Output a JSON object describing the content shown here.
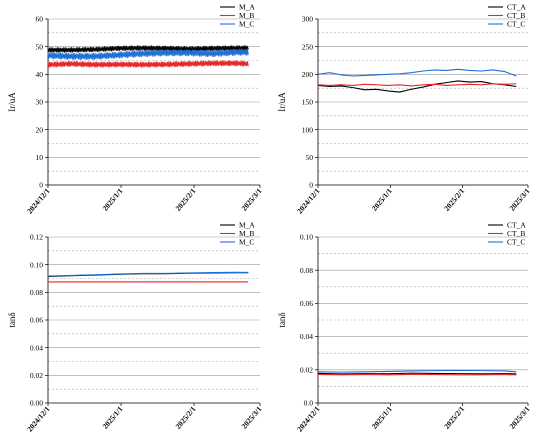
{
  "colors": {
    "A": "#000000",
    "B": "#e8262a",
    "C": "#1f6fd8"
  },
  "x_date_ticks": [
    "2024/12/1",
    "2025/1/1",
    "2025/2/1",
    "2025/3/1"
  ],
  "chart_data": [
    {
      "type": "line",
      "ylabel": "Ir/uA",
      "ylim": [
        0,
        60
      ],
      "yticks": [
        0,
        10,
        20,
        30,
        40,
        50,
        60
      ],
      "yticklabels": [
        "0",
        "10",
        "20",
        "30",
        "40",
        "50",
        "60"
      ],
      "grid": "solid lines at labeled y ticks, dashed lines halfway between",
      "legend": "top-right",
      "x_range": [
        "2024-12-01",
        "2025-03-01"
      ],
      "series": [
        {
          "name": "M_A",
          "color": "#000000",
          "style": "dense-oscillation",
          "x": [
            "2024-12-01",
            "2024-12-11",
            "2024-12-21",
            "2024-12-31",
            "2025-01-10",
            "2025-01-20",
            "2025-01-30",
            "2025-02-09",
            "2025-02-19",
            "2025-02-24"
          ],
          "y": [
            48.8,
            48.8,
            49.0,
            49.4,
            49.5,
            49.4,
            49.2,
            49.4,
            49.5,
            49.5
          ],
          "amplitude": 1.6
        },
        {
          "name": "M_B",
          "color": "#e8262a",
          "style": "dense-oscillation",
          "x": [
            "2024-12-01",
            "2024-12-11",
            "2024-12-21",
            "2024-12-31",
            "2025-01-10",
            "2025-01-20",
            "2025-01-30",
            "2025-02-09",
            "2025-02-19",
            "2025-02-24"
          ],
          "y": [
            43.5,
            43.8,
            43.5,
            43.6,
            43.5,
            43.6,
            43.8,
            44.0,
            44.0,
            43.8
          ],
          "amplitude": 1.8
        },
        {
          "name": "M_C",
          "color": "#1f6fd8",
          "style": "dense-oscillation",
          "x": [
            "2024-12-01",
            "2024-12-11",
            "2024-12-21",
            "2024-12-31",
            "2025-01-10",
            "2025-01-20",
            "2025-01-30",
            "2025-02-09",
            "2025-02-19",
            "2025-02-24"
          ],
          "y": [
            46.8,
            46.5,
            46.5,
            47.0,
            47.5,
            47.8,
            47.8,
            47.5,
            48.0,
            48.0
          ],
          "amplitude": 2.2
        }
      ]
    },
    {
      "type": "line",
      "ylabel": "Ir/uA",
      "ylim": [
        0,
        300
      ],
      "yticks": [
        0,
        50,
        100,
        150,
        200,
        250,
        300
      ],
      "yticklabels": [
        "0",
        "50",
        "100",
        "150",
        "200",
        "250",
        "300"
      ],
      "grid": "solid lines at labeled y ticks, dashed lines halfway between",
      "legend": "top-right",
      "x_range": [
        "2024-12-01",
        "2025-03-01"
      ],
      "series": [
        {
          "name": "CT_A",
          "color": "#000000",
          "x": [
            "2024-12-01",
            "2024-12-06",
            "2024-12-11",
            "2024-12-16",
            "2024-12-21",
            "2024-12-26",
            "2024-12-31",
            "2025-01-05",
            "2025-01-10",
            "2025-01-15",
            "2025-01-20",
            "2025-01-25",
            "2025-01-30",
            "2025-02-04",
            "2025-02-09",
            "2025-02-14",
            "2025-02-19",
            "2025-02-24"
          ],
          "y": [
            180,
            178,
            179,
            176,
            172,
            173,
            170,
            168,
            173,
            177,
            182,
            185,
            188,
            186,
            187,
            183,
            181,
            178
          ]
        },
        {
          "name": "CT_B",
          "color": "#e8262a",
          "x": [
            "2024-12-01",
            "2024-12-06",
            "2024-12-11",
            "2024-12-16",
            "2024-12-21",
            "2024-12-26",
            "2024-12-31",
            "2025-01-05",
            "2025-01-10",
            "2025-01-15",
            "2025-01-20",
            "2025-01-25",
            "2025-01-30",
            "2025-02-04",
            "2025-02-09",
            "2025-02-14",
            "2025-02-19",
            "2025-02-24"
          ],
          "y": [
            181,
            180,
            181,
            180,
            182,
            181,
            180,
            181,
            179,
            181,
            182,
            180,
            181,
            182,
            181,
            183,
            182,
            183
          ]
        },
        {
          "name": "CT_C",
          "color": "#1f6fd8",
          "x": [
            "2024-12-01",
            "2024-12-06",
            "2024-12-11",
            "2024-12-16",
            "2024-12-21",
            "2024-12-26",
            "2024-12-31",
            "2025-01-05",
            "2025-01-10",
            "2025-01-15",
            "2025-01-20",
            "2025-01-25",
            "2025-01-30",
            "2025-02-04",
            "2025-02-09",
            "2025-02-14",
            "2025-02-19",
            "2025-02-24"
          ],
          "y": [
            200,
            203,
            199,
            197,
            198,
            199,
            200,
            201,
            203,
            206,
            208,
            207,
            209,
            207,
            206,
            208,
            205,
            197
          ]
        }
      ]
    },
    {
      "type": "line",
      "ylabel": "tanδ",
      "ylim": [
        0,
        0.12
      ],
      "yticks": [
        0,
        0.02,
        0.04,
        0.06,
        0.08,
        0.1,
        0.12
      ],
      "yticklabels": [
        "0.00",
        "0.02",
        "0.04",
        "0.06",
        "0.08",
        "0.10",
        "0.12"
      ],
      "grid": "solid lines at labeled y ticks, dashed lines halfway between",
      "legend": "top-right",
      "x_range": [
        "2024-12-01",
        "2025-03-01"
      ],
      "series": [
        {
          "name": "M_A",
          "color": "#000000",
          "x": [
            "2024-12-01",
            "2024-12-11",
            "2024-12-21",
            "2024-12-31",
            "2025-01-10",
            "2025-01-20",
            "2025-01-30",
            "2025-02-09",
            "2025-02-19",
            "2025-02-24"
          ],
          "y": [
            0.0915,
            0.092,
            0.0925,
            0.093,
            0.0935,
            0.0935,
            0.0938,
            0.094,
            0.0942,
            0.0942
          ]
        },
        {
          "name": "M_B",
          "color": "#e8262a",
          "x": [
            "2024-12-01",
            "2025-02-24"
          ],
          "y": [
            0.0875,
            0.0875
          ]
        },
        {
          "name": "M_C",
          "color": "#1f6fd8",
          "x": [
            "2024-12-01",
            "2024-12-11",
            "2024-12-21",
            "2024-12-31",
            "2025-01-10",
            "2025-01-20",
            "2025-01-30",
            "2025-02-09",
            "2025-02-19",
            "2025-02-24"
          ],
          "y": [
            0.0918,
            0.0922,
            0.0927,
            0.0932,
            0.0937,
            0.0937,
            0.094,
            0.0943,
            0.0945,
            0.0944
          ]
        }
      ]
    },
    {
      "type": "line",
      "ylabel": "tanδ",
      "ylim": [
        0,
        0.1
      ],
      "yticks": [
        0,
        0.02,
        0.04,
        0.06,
        0.08,
        0.1
      ],
      "yticklabels": [
        "0.0",
        "0.02",
        "0.04",
        "0.06",
        "0.08",
        "0.10"
      ],
      "grid": "solid lines at labeled y ticks, dashed lines halfway between",
      "legend": "top-right",
      "x_range": [
        "2024-12-01",
        "2025-03-01"
      ],
      "series": [
        {
          "name": "CT_A",
          "color": "#000000",
          "x": [
            "2024-12-01",
            "2024-12-11",
            "2024-12-21",
            "2024-12-31",
            "2025-01-10",
            "2025-01-20",
            "2025-01-30",
            "2025-02-09",
            "2025-02-19",
            "2025-02-24"
          ],
          "y": [
            0.0178,
            0.0175,
            0.0177,
            0.0176,
            0.018,
            0.0178,
            0.0177,
            0.0176,
            0.0177,
            0.0175
          ]
        },
        {
          "name": "CT_B",
          "color": "#e8262a",
          "x": [
            "2024-12-01",
            "2024-12-11",
            "2024-12-21",
            "2024-12-31",
            "2025-01-10",
            "2025-01-20",
            "2025-01-30",
            "2025-02-09",
            "2025-02-19",
            "2025-02-24"
          ],
          "y": [
            0.0172,
            0.017,
            0.0171,
            0.017,
            0.0172,
            0.0171,
            0.017,
            0.017,
            0.0171,
            0.017
          ]
        },
        {
          "name": "CT_C",
          "color": "#1f6fd8",
          "x": [
            "2024-12-01",
            "2024-12-11",
            "2024-12-21",
            "2024-12-31",
            "2025-01-10",
            "2025-01-20",
            "2025-01-30",
            "2025-02-09",
            "2025-02-19",
            "2025-02-24"
          ],
          "y": [
            0.0188,
            0.0186,
            0.0188,
            0.019,
            0.0193,
            0.0195,
            0.0196,
            0.0195,
            0.0193,
            0.0188
          ]
        }
      ]
    }
  ]
}
